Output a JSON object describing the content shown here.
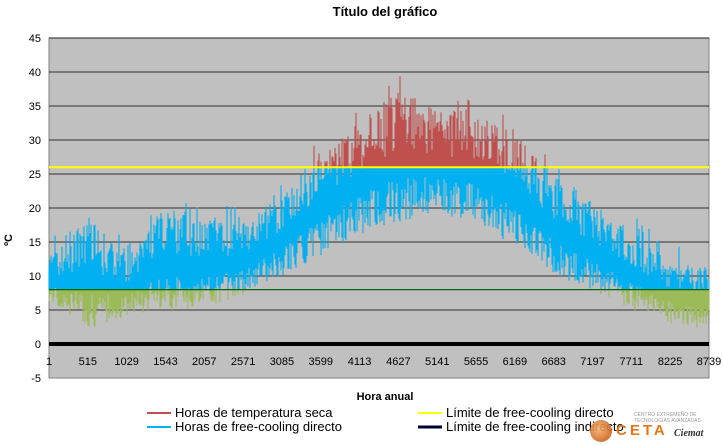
{
  "chart_data": {
    "type": "area",
    "title": "Título del gráfico",
    "xlabel": "Hora anual",
    "ylabel": "ºC",
    "ylim": [
      -5,
      45
    ],
    "yticks": [
      -5,
      0,
      5,
      10,
      15,
      20,
      25,
      30,
      35,
      40,
      45
    ],
    "xlim": [
      1,
      8739
    ],
    "xticks": [
      1,
      515,
      1029,
      1543,
      2057,
      2571,
      3085,
      3599,
      4113,
      4627,
      5141,
      5655,
      6169,
      6683,
      7197,
      7711,
      8225,
      8739
    ],
    "grid": "horizontal",
    "background": "#c0c0c0",
    "legend_position": "bottom",
    "thresholds": {
      "direct_free_cooling_limit": 26,
      "lower_line": 8,
      "zero_line": 0
    },
    "temperature_profile": {
      "description_values": "approximate smoothed upper envelope of dry-bulb temperature (°C) at each labelled hour",
      "hours": [
        1,
        515,
        1029,
        1543,
        2057,
        2571,
        3085,
        3599,
        4113,
        4627,
        5141,
        5655,
        6169,
        6683,
        7197,
        7711,
        8225,
        8739
      ],
      "max": [
        13,
        18,
        13,
        20,
        19,
        18,
        22,
        28,
        33,
        37,
        35,
        34,
        31,
        25,
        20,
        17,
        12,
        11
      ],
      "min": [
        6,
        2,
        4,
        5,
        5,
        7,
        10,
        13,
        16,
        18,
        19,
        18,
        14,
        10,
        8,
        5,
        3,
        2
      ]
    },
    "series": [
      {
        "name": "Horas de temperatura seca",
        "color": "#c0504d"
      },
      {
        "name": "Horas de free-cooling directo",
        "color": "#00b0f0"
      },
      {
        "name": "Límite de free-cooling directo",
        "color": "#ffff00"
      },
      {
        "name": "Límite de free-cooling indirecto",
        "color": "#000033"
      }
    ],
    "colors": {
      "low_band": "#9bbb59",
      "axis_zero": "#000000",
      "lower_line": "#006400"
    }
  },
  "logo": {
    "name": "CETA",
    "org": "Ciemat",
    "subtitle": "CENTRO EXTREMEÑO DE TECNOLOGÍAS AVANZADAS"
  }
}
